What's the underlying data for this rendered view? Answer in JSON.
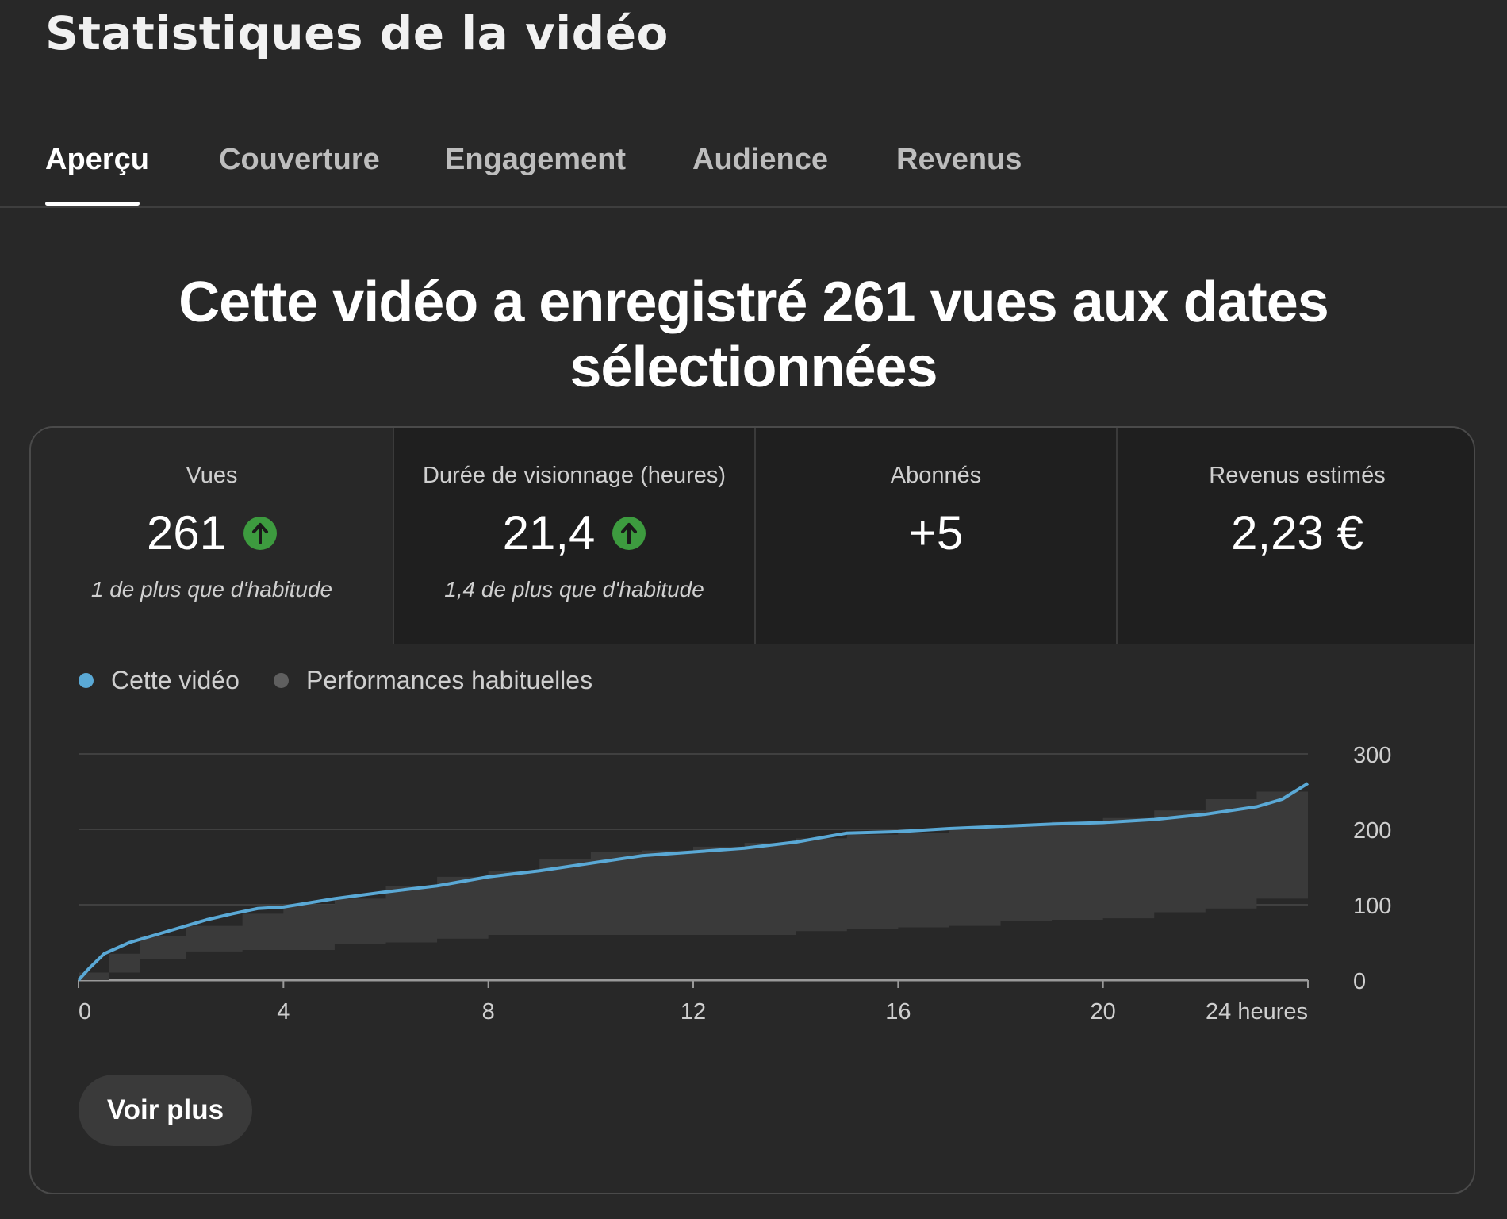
{
  "page_title": "Statistiques de la vidéo",
  "tabs": [
    {
      "label": "Aperçu",
      "active": true
    },
    {
      "label": "Couverture",
      "active": false
    },
    {
      "label": "Engagement",
      "active": false
    },
    {
      "label": "Audience",
      "active": false
    },
    {
      "label": "Revenus",
      "active": false
    }
  ],
  "headline": "Cette vidéo a enregistré 261 vues aux dates sélectionnées",
  "metrics": [
    {
      "label": "Vues",
      "value": "261",
      "trend": "up",
      "note": "1 de plus que d'habitude"
    },
    {
      "label": "Durée de visionnage (heures)",
      "value": "21,4",
      "trend": "up",
      "note": "1,4 de plus que d'habitude"
    },
    {
      "label": "Abonnés",
      "value": "+5",
      "trend": "",
      "note": ""
    },
    {
      "label": "Revenus estimés",
      "value": "2,23 €",
      "trend": "",
      "note": ""
    }
  ],
  "legend": {
    "this_video": "Cette vidéo",
    "typical": "Performances habituelles"
  },
  "colors": {
    "this_video": "#5aa9d6",
    "typical_band": "#3a3a3a",
    "typical_dot": "#5f5f5f",
    "trend_up": "#3d9b3f"
  },
  "icons": {
    "trend_up": "arrow-up-circle-icon"
  },
  "chart_data": {
    "type": "line",
    "title": "",
    "xlabel": "",
    "ylabel": "",
    "xlim": [
      0,
      24
    ],
    "ylim": [
      0,
      300
    ],
    "x_ticks": [
      {
        "value": 0,
        "label": "0"
      },
      {
        "value": 4,
        "label": "4"
      },
      {
        "value": 8,
        "label": "8"
      },
      {
        "value": 12,
        "label": "12"
      },
      {
        "value": 16,
        "label": "16"
      },
      {
        "value": 20,
        "label": "20"
      },
      {
        "value": 24,
        "label": "24 heures"
      }
    ],
    "y_ticks": [
      0,
      100,
      200,
      300
    ],
    "grid": true,
    "series": [
      {
        "name": "Cette vidéo",
        "x": [
          0,
          0.2,
          0.5,
          1,
          1.5,
          2,
          2.5,
          3,
          3.5,
          4,
          5,
          6,
          7,
          8,
          9,
          10,
          11,
          12,
          13,
          14,
          15,
          16,
          17,
          18,
          19,
          20,
          21,
          22,
          23,
          23.5,
          24
        ],
        "y": [
          0,
          15,
          35,
          50,
          60,
          70,
          80,
          88,
          95,
          97,
          108,
          117,
          125,
          137,
          145,
          155,
          165,
          170,
          175,
          183,
          195,
          197,
          201,
          204,
          207,
          209,
          213,
          220,
          230,
          240,
          261
        ]
      },
      {
        "name": "Performances habituelles",
        "x": [
          0,
          0.6,
          1.2,
          2.1,
          3.2,
          4,
          5,
          6,
          7,
          8,
          9,
          10,
          11,
          12,
          13,
          14,
          15,
          16,
          17,
          18,
          19,
          20,
          21,
          22,
          23,
          24
        ],
        "upper": [
          10,
          35,
          58,
          72,
          88,
          100,
          108,
          125,
          137,
          145,
          160,
          170,
          172,
          177,
          182,
          188,
          193,
          195,
          200,
          205,
          210,
          215,
          225,
          240,
          250,
          262
        ],
        "lower": [
          0,
          10,
          28,
          38,
          40,
          40,
          48,
          50,
          55,
          60,
          60,
          60,
          60,
          60,
          60,
          65,
          68,
          70,
          72,
          78,
          80,
          82,
          90,
          95,
          108,
          110
        ]
      }
    ]
  },
  "buttons": {
    "see_more": "Voir plus"
  }
}
